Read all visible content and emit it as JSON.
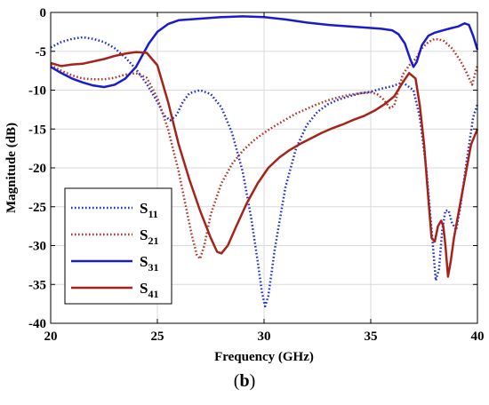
{
  "panel_label": {
    "open": "(",
    "letter": "b",
    "close": ")"
  },
  "chart_data": {
    "type": "line",
    "title": "",
    "xlabel": "Frequency (GHz)",
    "ylabel": "Magnitude (dB)",
    "xlim": [
      20,
      40
    ],
    "ylim": [
      -40,
      0
    ],
    "xticks": [
      20,
      25,
      30,
      35,
      40
    ],
    "yticks": [
      0,
      -5,
      -10,
      -15,
      -20,
      -25,
      -30,
      -35,
      -40
    ],
    "grid": true,
    "legend": {
      "placement": "bottom-left"
    },
    "series": [
      {
        "name": "S11",
        "name_main": "S",
        "name_sub": "11",
        "color": "#1f2bd6",
        "style": "dotted",
        "x": [
          20,
          20.5,
          21,
          21.5,
          22,
          22.5,
          23,
          23.5,
          24,
          24.5,
          25,
          25.3,
          25.6,
          25.9,
          26.2,
          26.5,
          27,
          27.5,
          28,
          28.5,
          29,
          29.4,
          29.7,
          29.9,
          30.05,
          30.2,
          30.5,
          31,
          31.5,
          32,
          32.5,
          33,
          33.5,
          34,
          34.5,
          35,
          35.5,
          36,
          36.5,
          37,
          37.3,
          37.6,
          37.85,
          38.05,
          38.2,
          38.35,
          38.5,
          38.65,
          38.8,
          39,
          39.2,
          39.5,
          39.8,
          40
        ],
        "y": [
          -4.5,
          -3.8,
          -3.4,
          -3.2,
          -3.4,
          -3.8,
          -4.6,
          -5.8,
          -7.3,
          -9.2,
          -11.5,
          -13.2,
          -13.9,
          -13.2,
          -11.5,
          -10.4,
          -10.0,
          -10.5,
          -12.2,
          -15.5,
          -20.5,
          -26.5,
          -32.0,
          -36.0,
          -37.8,
          -36.5,
          -30.5,
          -22.5,
          -17.5,
          -14.5,
          -12.8,
          -11.8,
          -11.2,
          -10.8,
          -10.4,
          -10.2,
          -9.8,
          -9.5,
          -9.0,
          -10.0,
          -13.5,
          -20.0,
          -28.0,
          -34.5,
          -33.0,
          -28.0,
          -25.5,
          -25.5,
          -27.0,
          -28.0,
          -25.0,
          -19.0,
          -13.5,
          -11.8
        ]
      },
      {
        "name": "S21",
        "name_main": "S",
        "name_sub": "21",
        "color": "#b0342b",
        "style": "dotted",
        "x": [
          20,
          20.5,
          21,
          21.5,
          22,
          22.5,
          23,
          23.5,
          24,
          24.5,
          25,
          25.5,
          26,
          26.3,
          26.6,
          26.85,
          27.0,
          27.2,
          27.5,
          28,
          28.5,
          29,
          29.5,
          30,
          30.5,
          31,
          31.5,
          32,
          32.5,
          33,
          33.5,
          34,
          34.5,
          35,
          35.3,
          35.6,
          35.9,
          36.1,
          36.3,
          36.5,
          36.8,
          37.1,
          37.4,
          37.7,
          38.0,
          38.4,
          38.8,
          39.2,
          39.5,
          39.75,
          40
        ],
        "y": [
          -6.8,
          -7.5,
          -8.1,
          -8.5,
          -8.6,
          -8.6,
          -8.4,
          -8.0,
          -7.8,
          -8.4,
          -11.0,
          -15.0,
          -20.5,
          -24.5,
          -28.5,
          -31.2,
          -31.7,
          -30.0,
          -26.0,
          -22.0,
          -19.5,
          -17.8,
          -16.5,
          -15.5,
          -14.6,
          -13.8,
          -13.0,
          -12.4,
          -11.8,
          -11.3,
          -10.9,
          -10.6,
          -10.4,
          -10.3,
          -10.5,
          -11.2,
          -12.3,
          -12.0,
          -10.0,
          -8.0,
          -6.8,
          -6.0,
          -4.6,
          -3.8,
          -3.4,
          -3.6,
          -4.6,
          -6.2,
          -7.8,
          -9.3,
          -6.8
        ]
      },
      {
        "name": "S31",
        "name_main": "S",
        "name_sub": "31",
        "color": "#1a1ad0",
        "style": "solid",
        "x": [
          20,
          20.5,
          21,
          21.5,
          22,
          22.5,
          23,
          23.5,
          24,
          24.3,
          24.6,
          25,
          25.5,
          26,
          27,
          28,
          29,
          30,
          31,
          32,
          33,
          34,
          35,
          35.5,
          36,
          36.3,
          36.6,
          36.85,
          37.0,
          37.15,
          37.4,
          37.7,
          38,
          38.4,
          38.8,
          39.1,
          39.4,
          39.6,
          39.8,
          40
        ],
        "y": [
          -7.0,
          -7.8,
          -8.5,
          -9.0,
          -9.4,
          -9.6,
          -9.3,
          -8.5,
          -7.0,
          -5.5,
          -4.0,
          -2.5,
          -1.5,
          -1.0,
          -0.8,
          -0.6,
          -0.5,
          -0.6,
          -0.9,
          -1.3,
          -1.6,
          -1.8,
          -2.0,
          -2.1,
          -2.3,
          -2.8,
          -4.0,
          -6.0,
          -7.0,
          -6.4,
          -4.2,
          -3.0,
          -2.6,
          -2.3,
          -2.0,
          -1.8,
          -1.4,
          -1.6,
          -3.0,
          -4.8
        ]
      },
      {
        "name": "S41",
        "name_main": "S",
        "name_sub": "41",
        "color": "#a52318",
        "style": "solid",
        "x": [
          20,
          20.5,
          21,
          21.5,
          22,
          22.5,
          23,
          23.5,
          24,
          24.5,
          25,
          25.5,
          26,
          26.5,
          27,
          27.5,
          27.8,
          28.0,
          28.3,
          28.7,
          29.2,
          29.7,
          30.2,
          30.7,
          31.2,
          31.7,
          32.2,
          32.7,
          33.2,
          33.7,
          34.2,
          34.7,
          35.2,
          35.7,
          36.1,
          36.5,
          36.8,
          37.1,
          37.3,
          37.5,
          37.7,
          37.85,
          38.0,
          38.15,
          38.3,
          38.4,
          38.5,
          38.62,
          38.75,
          38.9,
          39.1,
          39.3,
          39.5,
          39.7,
          40
        ],
        "y": [
          -6.5,
          -6.9,
          -6.7,
          -6.6,
          -6.3,
          -6.0,
          -5.6,
          -5.3,
          -5.1,
          -5.2,
          -6.8,
          -11.5,
          -17.0,
          -21.5,
          -25.5,
          -29.0,
          -30.8,
          -31.0,
          -30.0,
          -27.5,
          -24.5,
          -22.0,
          -20.0,
          -18.7,
          -17.7,
          -16.9,
          -16.2,
          -15.5,
          -14.9,
          -14.4,
          -13.8,
          -13.3,
          -12.6,
          -11.7,
          -10.8,
          -9.0,
          -7.8,
          -8.5,
          -12.0,
          -17.0,
          -24.0,
          -29.0,
          -29.5,
          -27.5,
          -26.8,
          -27.5,
          -30.0,
          -34.0,
          -32.0,
          -29.0,
          -26.0,
          -23.0,
          -20.0,
          -17.0,
          -15.0
        ]
      }
    ]
  }
}
